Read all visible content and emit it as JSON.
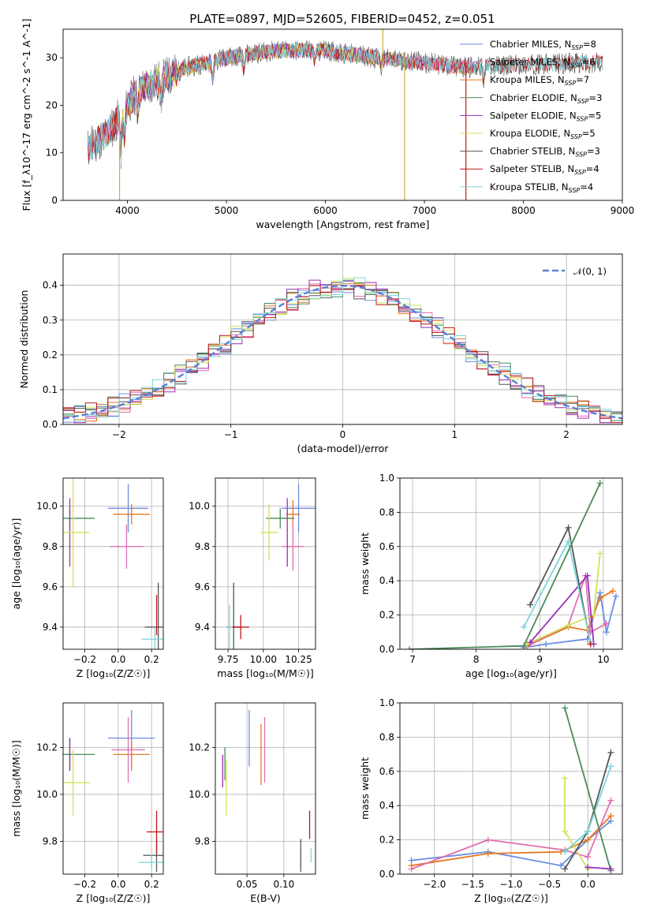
{
  "title": "PLATE=0897, MJD=52605, FIBERID=0452, z=0.051",
  "colors": [
    "#6a8ee0",
    "#e06fb4",
    "#e8781e",
    "#4a8a5a",
    "#9a2fb8",
    "#d4e05a",
    "#555555",
    "#c01818",
    "#7ad6dc"
  ],
  "chart_data": [
    {
      "type": "line",
      "id": "spectrum",
      "xlabel": "wavelength [Angstrom, rest frame]",
      "ylabel": "Flux [f_λ10^-17 erg cm^-2 s^-1 A^-1]",
      "xlim": [
        3350,
        9000
      ],
      "ylim": [
        0,
        36
      ],
      "xticks": [
        4000,
        5000,
        6000,
        7000,
        8000,
        9000
      ],
      "yticks": [
        0,
        10,
        20,
        30
      ],
      "grid": false,
      "legend": "right",
      "continuum": {
        "x": [
          3600,
          3800,
          4000,
          4100,
          4300,
          4600,
          5000,
          5500,
          6000,
          6500,
          7000,
          7400,
          8000,
          8700
        ],
        "y": [
          11,
          14,
          20,
          23,
          25,
          28,
          30,
          31.5,
          31.5,
          30,
          29,
          28,
          28.5,
          29
        ]
      },
      "artifacts": [
        {
          "x": 3920,
          "y_from": 0,
          "y_to": 12
        },
        {
          "x": 6800,
          "y_from": 0,
          "y_to": 31
        },
        {
          "x": 7420,
          "y_from": 0,
          "y_to": 29
        },
        {
          "x": 6580,
          "y_from": 29,
          "y_to": 36
        }
      ],
      "series": [
        {
          "name": "Chabrier MILES",
          "nssp": "8",
          "x_range": [
            3600,
            7500
          ]
        },
        {
          "name": "Salpeter MILES",
          "nssp": "6",
          "x_range": [
            3600,
            7500
          ]
        },
        {
          "name": "Kroupa MILES",
          "nssp": "7",
          "x_range": [
            3600,
            7500
          ]
        },
        {
          "name": "Chabrier ELODIE",
          "nssp": "3",
          "x_range": [
            3900,
            6800
          ]
        },
        {
          "name": "Salpeter ELODIE",
          "nssp": "5",
          "x_range": [
            3900,
            6800
          ]
        },
        {
          "name": "Kroupa ELODIE",
          "nssp": "5",
          "x_range": [
            3900,
            6800
          ]
        },
        {
          "name": "Chabrier STELIB",
          "nssp": "3",
          "x_range": [
            3600,
            8800
          ]
        },
        {
          "name": "Salpeter STELIB",
          "nssp": "4",
          "x_range": [
            3600,
            8800
          ]
        },
        {
          "name": "Kroupa STELIB",
          "nssp": "4",
          "x_range": [
            3600,
            8800
          ]
        }
      ]
    },
    {
      "type": "area",
      "id": "residuals",
      "xlabel": "(data-model)/error",
      "ylabel": "Normed distribution",
      "xlim": [
        -2.5,
        2.5
      ],
      "ylim": [
        0,
        0.49
      ],
      "xticks": [
        -2,
        -1,
        0,
        1,
        2
      ],
      "yticks": [
        0.0,
        0.1,
        0.2,
        0.3,
        0.4
      ],
      "grid": true,
      "legend": "top-right",
      "reference": {
        "name": "N(0,1)",
        "legend_label": "𝒩(0, 1)",
        "mean": 0,
        "sigma": 1
      },
      "bin_width": 0.1,
      "series": [
        {
          "name": "Chabrier MILES",
          "amplitude": 0.39,
          "sigma": 1.02,
          "seed": 3
        },
        {
          "name": "Salpeter MILES",
          "amplitude": 0.39,
          "sigma": 1.0,
          "seed": 7
        },
        {
          "name": "Kroupa MILES",
          "amplitude": 0.4,
          "sigma": 1.0,
          "seed": 11
        },
        {
          "name": "Chabrier ELODIE",
          "amplitude": 0.39,
          "sigma": 1.05,
          "seed": 13
        },
        {
          "name": "Salpeter ELODIE",
          "amplitude": 0.41,
          "sigma": 0.97,
          "seed": 17
        },
        {
          "name": "Kroupa ELODIE",
          "amplitude": 0.4,
          "sigma": 1.0,
          "seed": 19
        },
        {
          "name": "Chabrier STELIB",
          "amplitude": 0.39,
          "sigma": 1.02,
          "seed": 23
        },
        {
          "name": "Salpeter STELIB",
          "amplitude": 0.39,
          "sigma": 1.03,
          "seed": 29
        },
        {
          "name": "Kroupa STELIB",
          "amplitude": 0.4,
          "sigma": 1.0,
          "seed": 31
        }
      ]
    },
    {
      "type": "scatter",
      "id": "age-vs-Z",
      "xlabel": "Z [log₁₀(Z/Z☉)]",
      "ylabel": "age  [log₁₀(age/yr)]",
      "xlim": [
        -0.33,
        0.27
      ],
      "ylim": [
        9.29,
        10.14
      ],
      "xticks": [
        -0.2,
        0.0,
        0.2
      ],
      "yticks": [
        9.4,
        9.6,
        9.8,
        10.0
      ],
      "grid": true,
      "errorbars": [
        {
          "x": 0.06,
          "y": 9.99,
          "ex": 0.12,
          "ey": 0.12,
          "color": 0
        },
        {
          "x": 0.08,
          "y": 9.96,
          "ex": 0.11,
          "ey": 0.05,
          "color": 2
        },
        {
          "x": 0.05,
          "y": 9.8,
          "ex": 0.1,
          "ey": 0.11,
          "color": 1
        },
        {
          "x": -0.29,
          "y": 9.94,
          "ex": 0.15,
          "ey": 0.05,
          "color": 3
        },
        {
          "x": -0.29,
          "y": 9.87,
          "ex": 0.0,
          "ey": 0.17,
          "color": 4
        },
        {
          "x": -0.27,
          "y": 9.87,
          "ex": 0.1,
          "ey": 0.27,
          "color": 5
        },
        {
          "x": 0.24,
          "y": 9.4,
          "ex": 0.08,
          "ey": 0.22,
          "color": 6
        },
        {
          "x": 0.23,
          "y": 9.46,
          "ex": 0.0,
          "ey": 0.1,
          "color": 7
        },
        {
          "x": 0.22,
          "y": 9.34,
          "ex": 0.08,
          "ey": 0.06,
          "color": 8
        }
      ]
    },
    {
      "type": "scatter",
      "id": "age-vs-mass",
      "xlabel": "mass [log₁₀(M/M☉)]",
      "ylabel": "",
      "xlim": [
        9.66,
        10.37
      ],
      "ylim": [
        9.29,
        10.14
      ],
      "xticks": [
        9.75,
        10.0,
        10.25
      ],
      "yticks": [
        9.4,
        9.6,
        9.8,
        10.0
      ],
      "grid": true,
      "errorbars": [
        {
          "x": 10.25,
          "y": 9.99,
          "ex": 0.12,
          "ey": 0.12,
          "color": 0
        },
        {
          "x": 10.21,
          "y": 9.96,
          "ex": 0.05,
          "ey": 0.07,
          "color": 2
        },
        {
          "x": 10.21,
          "y": 9.8,
          "ex": 0.08,
          "ey": 0.12,
          "color": 1
        },
        {
          "x": 10.12,
          "y": 9.94,
          "ex": 0.1,
          "ey": 0.05,
          "color": 3
        },
        {
          "x": 10.17,
          "y": 9.87,
          "ex": 0.0,
          "ey": 0.17,
          "color": 4
        },
        {
          "x": 10.04,
          "y": 9.87,
          "ex": 0.06,
          "ey": 0.14,
          "color": 5
        },
        {
          "x": 9.79,
          "y": 9.4,
          "ex": 0.05,
          "ey": 0.22,
          "color": 6
        },
        {
          "x": 9.84,
          "y": 9.4,
          "ex": 0.06,
          "ey": 0.06,
          "color": 7
        },
        {
          "x": 9.76,
          "y": 9.4,
          "ex": 0.02,
          "ey": 0.11,
          "color": 8
        }
      ]
    },
    {
      "type": "line",
      "id": "massweight-vs-age",
      "xlabel": "age  [log₁₀(age/yr)]",
      "ylabel": "mass weight",
      "xlim": [
        6.8,
        10.3
      ],
      "ylim": [
        0,
        1.0
      ],
      "xticks": [
        7,
        8,
        9,
        10
      ],
      "yticks": [
        0.0,
        0.2,
        0.4,
        0.6,
        0.8,
        1.0
      ],
      "grid": true,
      "series": [
        {
          "color": 0,
          "x": [
            8.75,
            9.1,
            9.75,
            9.95,
            10.05,
            10.2
          ],
          "y": [
            0.01,
            0.03,
            0.06,
            0.33,
            0.1,
            0.31
          ]
        },
        {
          "color": 2,
          "x": [
            8.8,
            9.45,
            9.75,
            9.95,
            10.15
          ],
          "y": [
            0.02,
            0.13,
            0.11,
            0.3,
            0.34
          ]
        },
        {
          "color": 1,
          "x": [
            8.85,
            9.45,
            9.72,
            9.8,
            10.05
          ],
          "y": [
            0.03,
            0.14,
            0.43,
            0.1,
            0.15
          ]
        },
        {
          "color": 5,
          "x": [
            8.8,
            9.45,
            9.85,
            9.95
          ],
          "y": [
            0.03,
            0.14,
            0.2,
            0.56
          ]
        },
        {
          "color": 4,
          "x": [
            8.85,
            9.75,
            9.85
          ],
          "y": [
            0.04,
            0.43,
            0.03
          ]
        },
        {
          "color": 6,
          "x": [
            8.85,
            9.45,
            9.8
          ],
          "y": [
            0.26,
            0.71,
            0.03
          ]
        },
        {
          "color": 8,
          "x": [
            8.75,
            9.45,
            9.8
          ],
          "y": [
            0.13,
            0.63,
            0.04
          ]
        },
        {
          "color": 3,
          "x": [
            6.95,
            8.75,
            9.95
          ],
          "y": [
            0.0,
            0.02,
            0.97
          ]
        },
        {
          "color": 7,
          "x": [
            9.8
          ],
          "y": [
            0.03
          ]
        }
      ]
    },
    {
      "type": "scatter",
      "id": "mass-vs-Z",
      "xlabel": "Z [log₁₀(Z/Z☉)]",
      "ylabel": "mass [log₁₀(M/M☉)]",
      "xlim": [
        -0.33,
        0.27
      ],
      "ylim": [
        9.66,
        10.39
      ],
      "xticks": [
        -0.2,
        0.0,
        0.2
      ],
      "yticks": [
        9.8,
        10.0,
        10.2
      ],
      "grid": true,
      "errorbars": [
        {
          "x": 0.08,
          "y": 10.24,
          "ex": 0.14,
          "ey": 0.12,
          "color": 0
        },
        {
          "x": 0.08,
          "y": 10.17,
          "ex": 0.11,
          "ey": 0.07,
          "color": 2
        },
        {
          "x": 0.06,
          "y": 10.19,
          "ex": 0.1,
          "ey": 0.14,
          "color": 1
        },
        {
          "x": -0.29,
          "y": 10.17,
          "ex": 0.15,
          "ey": 0.07,
          "color": 3
        },
        {
          "x": -0.29,
          "y": 10.17,
          "ex": 0.0,
          "ey": 0.07,
          "color": 4
        },
        {
          "x": -0.27,
          "y": 10.05,
          "ex": 0.1,
          "ey": 0.14,
          "color": 5
        },
        {
          "x": 0.23,
          "y": 9.74,
          "ex": 0.08,
          "ey": 0.07,
          "color": 6
        },
        {
          "x": 0.23,
          "y": 9.84,
          "ex": 0.06,
          "ey": 0.09,
          "color": 7
        },
        {
          "x": 0.2,
          "y": 9.71,
          "ex": 0.08,
          "ey": 0.03,
          "color": 8
        }
      ]
    },
    {
      "type": "scatter",
      "id": "mass-vs-EBV",
      "xlabel": "E(B-V)",
      "ylabel": "",
      "xlim": [
        0.007,
        0.143
      ],
      "ylim": [
        9.66,
        10.39
      ],
      "xticks": [
        0.05,
        0.1
      ],
      "yticks": [
        9.8,
        10.0,
        10.2
      ],
      "grid": true,
      "errorbars": [
        {
          "x": 0.053,
          "y": 10.24,
          "ex": 0.0,
          "ey": 0.12,
          "color": 0
        },
        {
          "x": 0.069,
          "y": 10.17,
          "ex": 0.0,
          "ey": 0.13,
          "color": 2
        },
        {
          "x": 0.074,
          "y": 10.19,
          "ex": 0.0,
          "ey": 0.14,
          "color": 1
        },
        {
          "x": 0.02,
          "y": 10.13,
          "ex": 0.0,
          "ey": 0.07,
          "color": 3
        },
        {
          "x": 0.017,
          "y": 10.1,
          "ex": 0.0,
          "ey": 0.07,
          "color": 4
        },
        {
          "x": 0.022,
          "y": 10.03,
          "ex": 0.0,
          "ey": 0.12,
          "color": 5
        },
        {
          "x": 0.123,
          "y": 9.74,
          "ex": 0.0,
          "ey": 0.07,
          "color": 6
        },
        {
          "x": 0.135,
          "y": 9.87,
          "ex": 0.0,
          "ey": 0.06,
          "color": 7
        },
        {
          "x": 0.137,
          "y": 9.74,
          "ex": 0.0,
          "ey": 0.03,
          "color": 8
        }
      ]
    },
    {
      "type": "line",
      "id": "massweight-vs-Z",
      "xlabel": "Z [log₁₀(Z/Z☉)]",
      "ylabel": "mass weight",
      "xlim": [
        -2.45,
        0.45
      ],
      "ylim": [
        0,
        1.0
      ],
      "xticks": [
        -2.0,
        -1.5,
        -1.0,
        -0.5,
        0.0
      ],
      "yticks": [
        0.0,
        0.2,
        0.4,
        0.6,
        0.8,
        1.0
      ],
      "grid": true,
      "series": [
        {
          "color": 0,
          "x": [
            -2.3,
            -1.3,
            -0.35,
            0.0,
            0.3
          ],
          "y": [
            0.08,
            0.13,
            0.05,
            0.2,
            0.31
          ]
        },
        {
          "color": 2,
          "x": [
            -2.3,
            -1.3,
            -0.35,
            0.0,
            0.3
          ],
          "y": [
            0.05,
            0.12,
            0.13,
            0.2,
            0.34
          ]
        },
        {
          "color": 1,
          "x": [
            -2.3,
            -1.3,
            -0.3,
            0.0,
            0.3
          ],
          "y": [
            0.03,
            0.2,
            0.14,
            0.1,
            0.43
          ]
        },
        {
          "color": 5,
          "x": [
            -0.3,
            -0.3,
            0.0
          ],
          "y": [
            0.56,
            0.25,
            0.03
          ]
        },
        {
          "color": 6,
          "x": [
            -0.3,
            0.0,
            0.3
          ],
          "y": [
            0.03,
            0.25,
            0.71
          ]
        },
        {
          "color": 8,
          "x": [
            -0.3,
            0.0,
            0.3
          ],
          "y": [
            0.13,
            0.25,
            0.63
          ]
        },
        {
          "color": 3,
          "x": [
            -0.3,
            0.3
          ],
          "y": [
            0.97,
            0.02
          ]
        },
        {
          "color": 4,
          "x": [
            0.0,
            0.3
          ],
          "y": [
            0.04,
            0.03
          ]
        }
      ]
    }
  ]
}
